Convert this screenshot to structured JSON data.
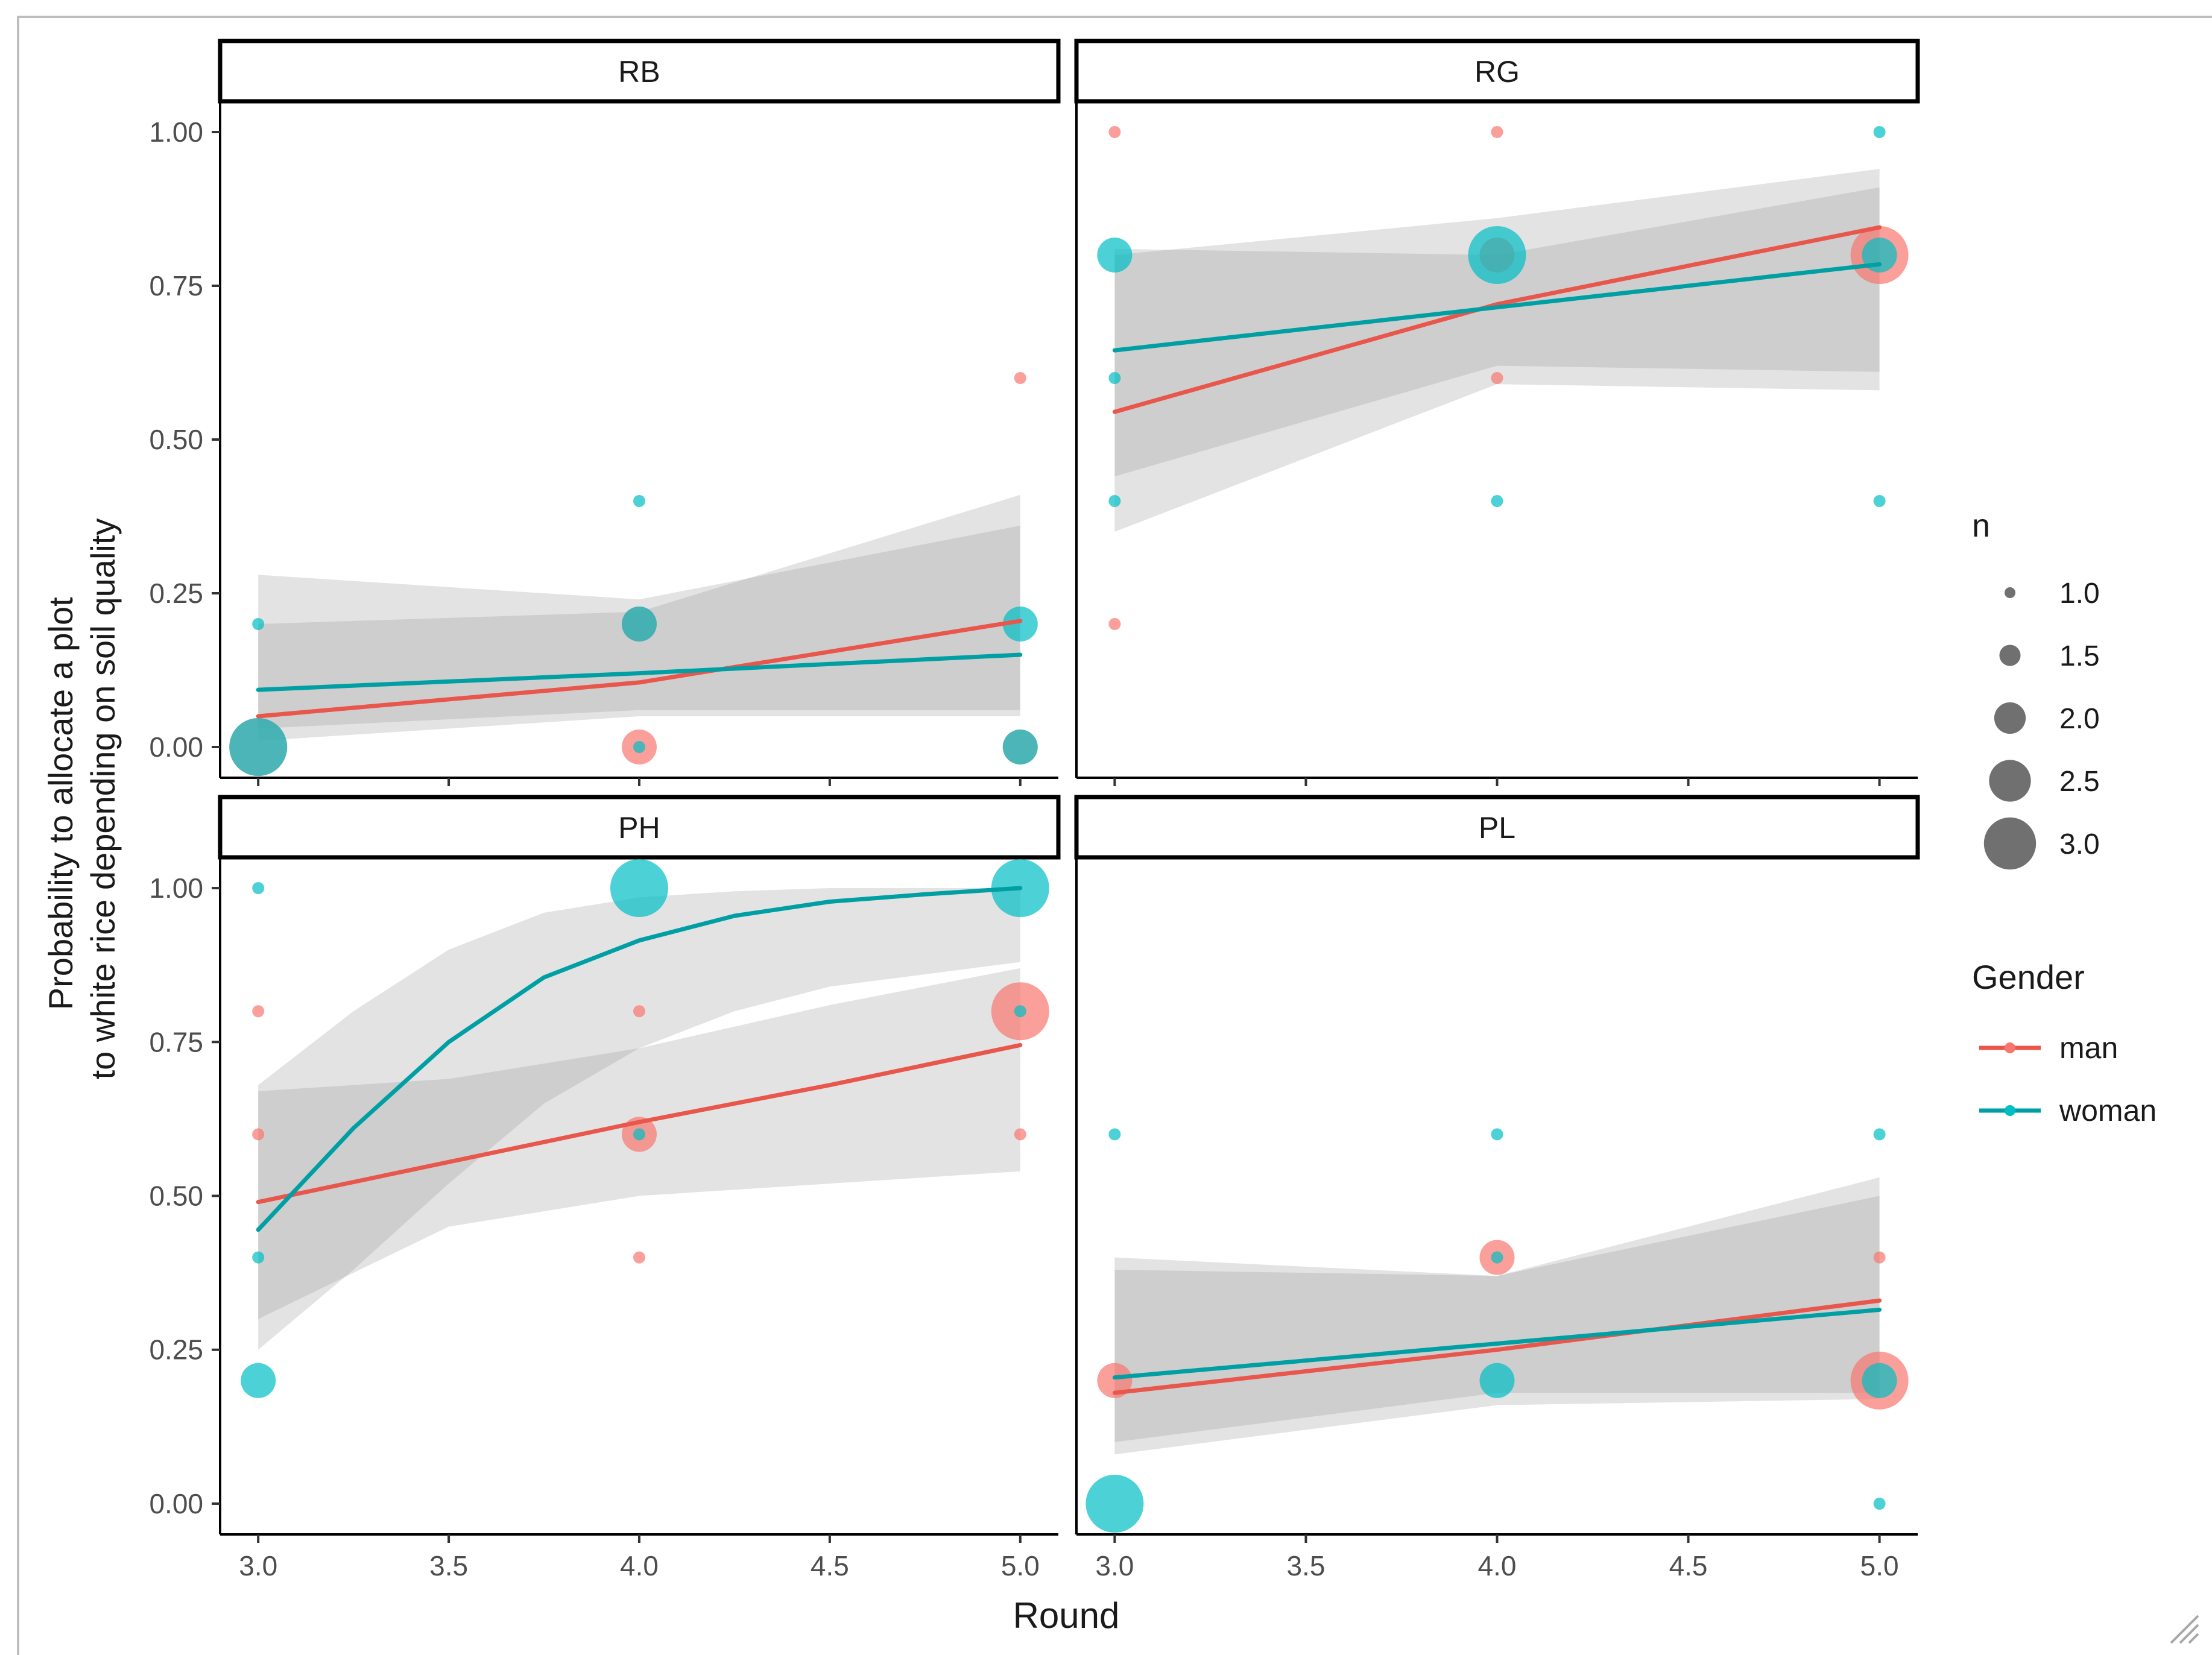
{
  "colors": {
    "man": "#F8766D",
    "woman": "#00BFC4",
    "man_line": "#E8564C",
    "woman_line": "#009FA4",
    "band": "#999999",
    "axis_text": "#4D4D4D",
    "dark": "#1A1A1A"
  },
  "chart_data": {
    "type": "scatter",
    "title": "",
    "xlabel": "Round",
    "ylabel_lines": [
      "Probability to allocate a plot",
      "to white rice depending on soil quality"
    ],
    "xlim": [
      2.9,
      5.1
    ],
    "ylim": [
      -0.05,
      1.05
    ],
    "x_ticks": [
      "3.0",
      "3.5",
      "4.0",
      "4.5",
      "5.0"
    ],
    "y_ticks": [
      "0.00",
      "0.25",
      "0.50",
      "0.75",
      "1.00"
    ],
    "legend_size": {
      "title": "n",
      "entries": [
        "1.0",
        "1.5",
        "2.0",
        "2.5",
        "3.0"
      ]
    },
    "legend_color": {
      "title": "Gender",
      "entries": [
        "man",
        "woman"
      ]
    },
    "panels": [
      {
        "name": "RB",
        "points": [
          {
            "x": 3,
            "y": 0.2,
            "n": 1,
            "g": "woman"
          },
          {
            "x": 3,
            "y": 0.0,
            "n": 3,
            "g": "man"
          },
          {
            "x": 3,
            "y": 0.0,
            "n": 3,
            "g": "woman"
          },
          {
            "x": 4,
            "y": 0.4,
            "n": 1,
            "g": "woman"
          },
          {
            "x": 4,
            "y": 0.2,
            "n": 2,
            "g": "man"
          },
          {
            "x": 4,
            "y": 0.2,
            "n": 2,
            "g": "woman"
          },
          {
            "x": 4,
            "y": 0.0,
            "n": 2,
            "g": "man"
          },
          {
            "x": 4,
            "y": 0.0,
            "n": 1,
            "g": "woman"
          },
          {
            "x": 5,
            "y": 0.6,
            "n": 1,
            "g": "man"
          },
          {
            "x": 5,
            "y": 0.2,
            "n": 2,
            "g": "woman"
          },
          {
            "x": 5,
            "y": 0.0,
            "n": 2,
            "g": "man"
          },
          {
            "x": 5,
            "y": 0.0,
            "n": 2,
            "g": "woman"
          }
        ],
        "fits": [
          {
            "g": "man",
            "x": [
              3,
              4,
              5
            ],
            "y": [
              0.05,
              0.105,
              0.205
            ],
            "lo": [
              0.01,
              0.05,
              0.05
            ],
            "hi": [
              0.2,
              0.22,
              0.41
            ]
          },
          {
            "g": "woman",
            "x": [
              3,
              4,
              5
            ],
            "y": [
              0.093,
              0.12,
              0.15
            ],
            "lo": [
              0.03,
              0.06,
              0.06
            ],
            "hi": [
              0.28,
              0.24,
              0.36
            ]
          }
        ]
      },
      {
        "name": "RG",
        "points": [
          {
            "x": 3,
            "y": 1.0,
            "n": 1,
            "g": "man"
          },
          {
            "x": 3,
            "y": 0.8,
            "n": 2,
            "g": "woman"
          },
          {
            "x": 3,
            "y": 0.6,
            "n": 1,
            "g": "woman"
          },
          {
            "x": 3,
            "y": 0.4,
            "n": 1,
            "g": "woman"
          },
          {
            "x": 3,
            "y": 0.2,
            "n": 1,
            "g": "man"
          },
          {
            "x": 4,
            "y": 1.0,
            "n": 1,
            "g": "man"
          },
          {
            "x": 4,
            "y": 0.8,
            "n": 2,
            "g": "man"
          },
          {
            "x": 4,
            "y": 0.8,
            "n": 3,
            "g": "woman"
          },
          {
            "x": 4,
            "y": 0.6,
            "n": 1,
            "g": "man"
          },
          {
            "x": 4,
            "y": 0.4,
            "n": 1,
            "g": "woman"
          },
          {
            "x": 5,
            "y": 1.0,
            "n": 1,
            "g": "woman"
          },
          {
            "x": 5,
            "y": 0.8,
            "n": 3,
            "g": "man"
          },
          {
            "x": 5,
            "y": 0.8,
            "n": 2,
            "g": "woman"
          },
          {
            "x": 5,
            "y": 0.4,
            "n": 1,
            "g": "woman"
          }
        ],
        "fits": [
          {
            "g": "man",
            "x": [
              3,
              4,
              5
            ],
            "y": [
              0.545,
              0.72,
              0.845
            ],
            "lo": [
              0.35,
              0.59,
              0.58
            ],
            "hi": [
              0.8,
              0.86,
              0.94
            ]
          },
          {
            "g": "woman",
            "x": [
              3,
              4,
              5
            ],
            "y": [
              0.645,
              0.715,
              0.785
            ],
            "lo": [
              0.44,
              0.62,
              0.61
            ],
            "hi": [
              0.81,
              0.8,
              0.91
            ]
          }
        ]
      },
      {
        "name": "PH",
        "points": [
          {
            "x": 3,
            "y": 1.0,
            "n": 1,
            "g": "woman"
          },
          {
            "x": 3,
            "y": 0.8,
            "n": 1,
            "g": "man"
          },
          {
            "x": 3,
            "y": 0.6,
            "n": 1,
            "g": "man"
          },
          {
            "x": 3,
            "y": 0.4,
            "n": 1,
            "g": "woman"
          },
          {
            "x": 3,
            "y": 0.2,
            "n": 2,
            "g": "woman"
          },
          {
            "x": 4,
            "y": 1.0,
            "n": 3,
            "g": "woman"
          },
          {
            "x": 4,
            "y": 0.8,
            "n": 1,
            "g": "man"
          },
          {
            "x": 4,
            "y": 0.6,
            "n": 2,
            "g": "man"
          },
          {
            "x": 4,
            "y": 0.6,
            "n": 1,
            "g": "woman"
          },
          {
            "x": 4,
            "y": 0.4,
            "n": 1,
            "g": "man"
          },
          {
            "x": 5,
            "y": 1.0,
            "n": 3,
            "g": "woman"
          },
          {
            "x": 5,
            "y": 0.8,
            "n": 3,
            "g": "man"
          },
          {
            "x": 5,
            "y": 0.8,
            "n": 1,
            "g": "woman"
          },
          {
            "x": 5,
            "y": 0.6,
            "n": 1,
            "g": "man"
          }
        ],
        "fits": [
          {
            "g": "man",
            "x": [
              3,
              3.5,
              4,
              4.5,
              5
            ],
            "y": [
              0.49,
              0.555,
              0.62,
              0.68,
              0.745
            ],
            "lo": [
              0.3,
              0.45,
              0.5,
              0.52,
              0.54
            ],
            "hi": [
              0.67,
              0.69,
              0.74,
              0.81,
              0.87
            ]
          },
          {
            "g": "woman",
            "x": [
              3,
              3.25,
              3.5,
              3.75,
              4,
              4.25,
              4.5,
              4.75,
              5
            ],
            "y": [
              0.445,
              0.61,
              0.75,
              0.855,
              0.915,
              0.955,
              0.978,
              0.99,
              1.0
            ],
            "lo": [
              0.25,
              0.38,
              0.52,
              0.65,
              0.74,
              0.8,
              0.84,
              0.86,
              0.88
            ],
            "hi": [
              0.68,
              0.8,
              0.9,
              0.96,
              0.985,
              0.995,
              1.0,
              1.0,
              1.0
            ]
          }
        ]
      },
      {
        "name": "PL",
        "points": [
          {
            "x": 3,
            "y": 0.6,
            "n": 1,
            "g": "woman"
          },
          {
            "x": 3,
            "y": 0.2,
            "n": 2,
            "g": "man"
          },
          {
            "x": 3,
            "y": 0.0,
            "n": 3,
            "g": "woman"
          },
          {
            "x": 4,
            "y": 0.6,
            "n": 1,
            "g": "woman"
          },
          {
            "x": 4,
            "y": 0.4,
            "n": 2,
            "g": "man"
          },
          {
            "x": 4,
            "y": 0.4,
            "n": 1,
            "g": "woman"
          },
          {
            "x": 4,
            "y": 0.2,
            "n": 2,
            "g": "woman"
          },
          {
            "x": 5,
            "y": 0.6,
            "n": 1,
            "g": "woman"
          },
          {
            "x": 5,
            "y": 0.4,
            "n": 1,
            "g": "man"
          },
          {
            "x": 5,
            "y": 0.2,
            "n": 3,
            "g": "man"
          },
          {
            "x": 5,
            "y": 0.2,
            "n": 2,
            "g": "woman"
          },
          {
            "x": 5,
            "y": 0.0,
            "n": 1,
            "g": "woman"
          }
        ],
        "fits": [
          {
            "g": "man",
            "x": [
              3,
              4,
              5
            ],
            "y": [
              0.18,
              0.25,
              0.33
            ],
            "lo": [
              0.08,
              0.16,
              0.17
            ],
            "hi": [
              0.38,
              0.37,
              0.53
            ]
          },
          {
            "g": "woman",
            "x": [
              3,
              4,
              5
            ],
            "y": [
              0.205,
              0.26,
              0.315
            ],
            "lo": [
              0.1,
              0.18,
              0.18
            ],
            "hi": [
              0.4,
              0.37,
              0.5
            ]
          }
        ]
      }
    ]
  }
}
